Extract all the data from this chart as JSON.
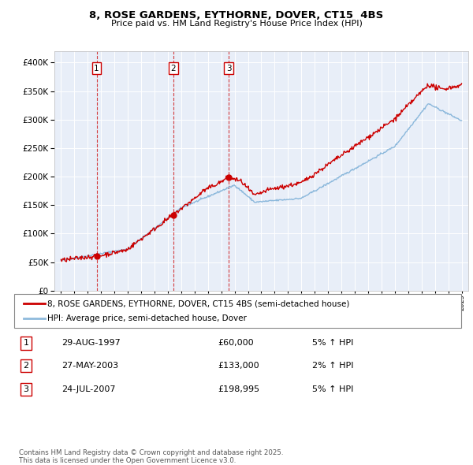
{
  "title": "8, ROSE GARDENS, EYTHORNE, DOVER, CT15  4BS",
  "subtitle": "Price paid vs. HM Land Registry's House Price Index (HPI)",
  "transactions": [
    {
      "num": 1,
      "date": "29-AUG-1997",
      "price": 60000,
      "price_str": "£60,000",
      "pct": "5%",
      "dir": "↑",
      "date_decimal": 1997.66
    },
    {
      "num": 2,
      "date": "27-MAY-2003",
      "price": 133000,
      "price_str": "£133,000",
      "pct": "2%",
      "dir": "↑",
      "date_decimal": 2003.4
    },
    {
      "num": 3,
      "date": "24-JUL-2007",
      "price": 198995,
      "price_str": "£198,995",
      "pct": "5%",
      "dir": "↑",
      "date_decimal": 2007.56
    }
  ],
  "legend_line1": "8, ROSE GARDENS, EYTHORNE, DOVER, CT15 4BS (semi-detached house)",
  "legend_line2": "HPI: Average price, semi-detached house, Dover",
  "footer": "Contains HM Land Registry data © Crown copyright and database right 2025.\nThis data is licensed under the Open Government Licence v3.0.",
  "red_color": "#cc0000",
  "blue_color": "#7aaed6",
  "background_color": "#e8eef8",
  "ylim": [
    0,
    420000
  ],
  "xlim": [
    1994.5,
    2025.5
  ]
}
